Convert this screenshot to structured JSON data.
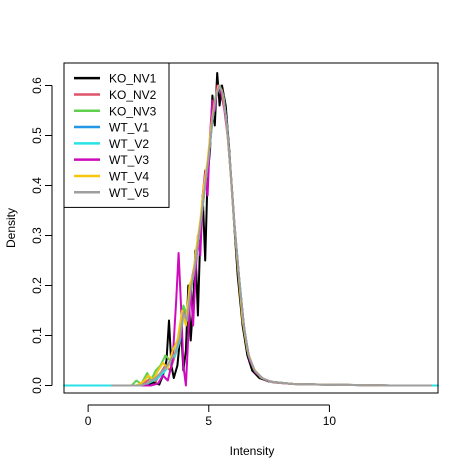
{
  "chart_data": {
    "type": "line",
    "title": "",
    "xlabel": "Intensity",
    "ylabel": "Density",
    "xlim": [
      -1.0,
      14.5
    ],
    "ylim": [
      -0.015,
      0.645
    ],
    "x_ticks": [
      0,
      5,
      10
    ],
    "y_ticks": [
      0.0,
      0.1,
      0.2,
      0.3,
      0.4,
      0.5,
      0.6
    ],
    "x_tick_labels": [
      "0",
      "5",
      "10"
    ],
    "y_tick_labels": [
      "0.0",
      "0.1",
      "0.2",
      "0.3",
      "0.4",
      "0.5",
      "0.6"
    ],
    "grid": false,
    "legend_position": "top-left",
    "series": [
      {
        "name": "KO_NV1",
        "color": "#000000",
        "points": [
          [
            1.0,
            0.0
          ],
          [
            2.4,
            0.0
          ],
          [
            2.7,
            0.006
          ],
          [
            2.95,
            0.002
          ],
          [
            3.1,
            0.02
          ],
          [
            3.25,
            0.05
          ],
          [
            3.35,
            0.13
          ],
          [
            3.45,
            0.04
          ],
          [
            3.55,
            0.015
          ],
          [
            3.7,
            0.04
          ],
          [
            3.85,
            0.115
          ],
          [
            3.95,
            0.03
          ],
          [
            4.05,
            0.07
          ],
          [
            4.15,
            0.2
          ],
          [
            4.25,
            0.09
          ],
          [
            4.35,
            0.16
          ],
          [
            4.45,
            0.27
          ],
          [
            4.55,
            0.14
          ],
          [
            4.65,
            0.3
          ],
          [
            4.75,
            0.38
          ],
          [
            4.85,
            0.25
          ],
          [
            4.95,
            0.42
          ],
          [
            5.05,
            0.47
          ],
          [
            5.15,
            0.58
          ],
          [
            5.25,
            0.52
          ],
          [
            5.35,
            0.625
          ],
          [
            5.45,
            0.56
          ],
          [
            5.55,
            0.6
          ],
          [
            5.7,
            0.56
          ],
          [
            5.85,
            0.47
          ],
          [
            6.0,
            0.36
          ],
          [
            6.2,
            0.22
          ],
          [
            6.4,
            0.12
          ],
          [
            6.6,
            0.06
          ],
          [
            6.8,
            0.03
          ],
          [
            7.1,
            0.015
          ],
          [
            7.5,
            0.008
          ],
          [
            8.5,
            0.003
          ],
          [
            9.5,
            0.002
          ],
          [
            11.0,
            0.001
          ],
          [
            12.5,
            0.0
          ],
          [
            13.9,
            0.0
          ]
        ]
      },
      {
        "name": "KO_NV2",
        "color": "#DF536B",
        "points": [
          [
            1.0,
            0.0
          ],
          [
            2.0,
            0.0
          ],
          [
            2.3,
            0.004
          ],
          [
            2.6,
            0.015
          ],
          [
            2.8,
            0.008
          ],
          [
            3.0,
            0.025
          ],
          [
            3.2,
            0.04
          ],
          [
            3.4,
            0.03
          ],
          [
            3.6,
            0.06
          ],
          [
            3.8,
            0.09
          ],
          [
            3.95,
            0.15
          ],
          [
            4.1,
            0.13
          ],
          [
            4.25,
            0.2
          ],
          [
            4.4,
            0.24
          ],
          [
            4.55,
            0.28
          ],
          [
            4.7,
            0.34
          ],
          [
            4.85,
            0.4
          ],
          [
            5.0,
            0.46
          ],
          [
            5.15,
            0.53
          ],
          [
            5.3,
            0.58
          ],
          [
            5.45,
            0.6
          ],
          [
            5.6,
            0.58
          ],
          [
            5.75,
            0.52
          ],
          [
            5.9,
            0.43
          ],
          [
            6.05,
            0.33
          ],
          [
            6.25,
            0.22
          ],
          [
            6.45,
            0.12
          ],
          [
            6.65,
            0.06
          ],
          [
            6.9,
            0.03
          ],
          [
            7.2,
            0.015
          ],
          [
            7.6,
            0.007
          ],
          [
            8.5,
            0.003
          ],
          [
            9.5,
            0.002
          ],
          [
            11.0,
            0.001
          ],
          [
            12.5,
            0.0
          ],
          [
            14.2,
            0.0
          ]
        ]
      },
      {
        "name": "KO_NV3",
        "color": "#61D04F",
        "points": [
          [
            1.0,
            0.0
          ],
          [
            1.8,
            0.0
          ],
          [
            2.0,
            0.01
          ],
          [
            2.2,
            0.003
          ],
          [
            2.45,
            0.025
          ],
          [
            2.6,
            0.01
          ],
          [
            2.8,
            0.03
          ],
          [
            3.0,
            0.04
          ],
          [
            3.2,
            0.06
          ],
          [
            3.4,
            0.05
          ],
          [
            3.6,
            0.08
          ],
          [
            3.8,
            0.1
          ],
          [
            3.95,
            0.16
          ],
          [
            4.1,
            0.14
          ],
          [
            4.25,
            0.2
          ],
          [
            4.4,
            0.23
          ],
          [
            4.55,
            0.28
          ],
          [
            4.7,
            0.34
          ],
          [
            4.85,
            0.4
          ],
          [
            5.0,
            0.46
          ],
          [
            5.15,
            0.53
          ],
          [
            5.3,
            0.58
          ],
          [
            5.45,
            0.6
          ],
          [
            5.6,
            0.58
          ],
          [
            5.75,
            0.52
          ],
          [
            5.9,
            0.43
          ],
          [
            6.05,
            0.33
          ],
          [
            6.25,
            0.22
          ],
          [
            6.45,
            0.12
          ],
          [
            6.65,
            0.06
          ],
          [
            6.9,
            0.03
          ],
          [
            7.2,
            0.015
          ],
          [
            7.6,
            0.007
          ],
          [
            8.5,
            0.003
          ],
          [
            9.5,
            0.002
          ],
          [
            11.0,
            0.001
          ],
          [
            12.5,
            0.0
          ],
          [
            14.2,
            0.0
          ]
        ]
      },
      {
        "name": "WT_V1",
        "color": "#2297E6",
        "points": [
          [
            1.0,
            0.0
          ],
          [
            2.2,
            0.0
          ],
          [
            2.5,
            0.005
          ],
          [
            2.8,
            0.012
          ],
          [
            3.0,
            0.02
          ],
          [
            3.2,
            0.03
          ],
          [
            3.4,
            0.045
          ],
          [
            3.6,
            0.06
          ],
          [
            3.8,
            0.09
          ],
          [
            3.95,
            0.14
          ],
          [
            4.1,
            0.13
          ],
          [
            4.25,
            0.19
          ],
          [
            4.4,
            0.23
          ],
          [
            4.55,
            0.28
          ],
          [
            4.7,
            0.34
          ],
          [
            4.85,
            0.4
          ],
          [
            5.0,
            0.46
          ],
          [
            5.15,
            0.53
          ],
          [
            5.3,
            0.58
          ],
          [
            5.45,
            0.6
          ],
          [
            5.6,
            0.58
          ],
          [
            5.75,
            0.52
          ],
          [
            5.9,
            0.43
          ],
          [
            6.05,
            0.33
          ],
          [
            6.25,
            0.22
          ],
          [
            6.45,
            0.12
          ],
          [
            6.65,
            0.06
          ],
          [
            6.9,
            0.03
          ],
          [
            7.2,
            0.015
          ],
          [
            7.6,
            0.007
          ],
          [
            8.5,
            0.003
          ],
          [
            9.5,
            0.002
          ],
          [
            11.0,
            0.001
          ],
          [
            12.5,
            0.0
          ],
          [
            14.2,
            0.0
          ]
        ]
      },
      {
        "name": "WT_V2",
        "color": "#28E2E5",
        "points": [
          [
            -1.0,
            0.0
          ],
          [
            1.0,
            0.0
          ],
          [
            2.2,
            0.0
          ],
          [
            2.5,
            0.005
          ],
          [
            2.8,
            0.012
          ],
          [
            3.0,
            0.02
          ],
          [
            3.2,
            0.03
          ],
          [
            3.4,
            0.045
          ],
          [
            3.6,
            0.06
          ],
          [
            3.8,
            0.09
          ],
          [
            3.95,
            0.14
          ],
          [
            4.1,
            0.13
          ],
          [
            4.25,
            0.19
          ],
          [
            4.4,
            0.23
          ],
          [
            4.55,
            0.28
          ],
          [
            4.7,
            0.34
          ],
          [
            4.85,
            0.4
          ],
          [
            5.0,
            0.46
          ],
          [
            5.15,
            0.53
          ],
          [
            5.3,
            0.58
          ],
          [
            5.45,
            0.6
          ],
          [
            5.6,
            0.58
          ],
          [
            5.75,
            0.52
          ],
          [
            5.9,
            0.43
          ],
          [
            6.05,
            0.33
          ],
          [
            6.25,
            0.22
          ],
          [
            6.45,
            0.12
          ],
          [
            6.65,
            0.06
          ],
          [
            6.9,
            0.03
          ],
          [
            7.2,
            0.015
          ],
          [
            7.6,
            0.007
          ],
          [
            8.5,
            0.003
          ],
          [
            9.5,
            0.002
          ],
          [
            11.0,
            0.001
          ],
          [
            12.5,
            0.0
          ],
          [
            14.5,
            0.0
          ]
        ]
      },
      {
        "name": "WT_V3",
        "color": "#CD0BBC",
        "points": [
          [
            1.0,
            0.0
          ],
          [
            2.6,
            0.0
          ],
          [
            2.9,
            0.004
          ],
          [
            3.1,
            0.02
          ],
          [
            3.3,
            0.01
          ],
          [
            3.5,
            0.05
          ],
          [
            3.65,
            0.17
          ],
          [
            3.75,
            0.265
          ],
          [
            3.85,
            0.16
          ],
          [
            3.95,
            0.04
          ],
          [
            4.05,
            0.0
          ],
          [
            4.15,
            0.1
          ],
          [
            4.25,
            0.2
          ],
          [
            4.35,
            0.12
          ],
          [
            4.45,
            0.22
          ],
          [
            4.55,
            0.3
          ],
          [
            4.65,
            0.26
          ],
          [
            4.75,
            0.38
          ],
          [
            4.85,
            0.43
          ],
          [
            4.95,
            0.38
          ],
          [
            5.05,
            0.5
          ],
          [
            5.15,
            0.57
          ],
          [
            5.25,
            0.55
          ],
          [
            5.35,
            0.6
          ],
          [
            5.5,
            0.59
          ],
          [
            5.65,
            0.55
          ],
          [
            5.8,
            0.49
          ],
          [
            5.95,
            0.4
          ],
          [
            6.1,
            0.3
          ],
          [
            6.3,
            0.19
          ],
          [
            6.5,
            0.1
          ],
          [
            6.7,
            0.05
          ],
          [
            6.95,
            0.025
          ],
          [
            7.3,
            0.012
          ],
          [
            7.7,
            0.006
          ],
          [
            8.5,
            0.003
          ],
          [
            9.5,
            0.002
          ],
          [
            11.0,
            0.001
          ],
          [
            12.5,
            0.0
          ],
          [
            14.2,
            0.0
          ]
        ]
      },
      {
        "name": "WT_V4",
        "color": "#F5C710",
        "points": [
          [
            1.0,
            0.0
          ],
          [
            2.0,
            0.0
          ],
          [
            2.3,
            0.008
          ],
          [
            2.5,
            0.02
          ],
          [
            2.7,
            0.012
          ],
          [
            2.9,
            0.03
          ],
          [
            3.1,
            0.045
          ],
          [
            3.3,
            0.035
          ],
          [
            3.5,
            0.07
          ],
          [
            3.7,
            0.09
          ],
          [
            3.9,
            0.15
          ],
          [
            4.05,
            0.12
          ],
          [
            4.2,
            0.2
          ],
          [
            4.35,
            0.22
          ],
          [
            4.5,
            0.28
          ],
          [
            4.65,
            0.33
          ],
          [
            4.8,
            0.4
          ],
          [
            4.95,
            0.45
          ],
          [
            5.1,
            0.52
          ],
          [
            5.25,
            0.57
          ],
          [
            5.4,
            0.6
          ],
          [
            5.55,
            0.59
          ],
          [
            5.7,
            0.54
          ],
          [
            5.85,
            0.46
          ],
          [
            6.0,
            0.36
          ],
          [
            6.2,
            0.24
          ],
          [
            6.4,
            0.13
          ],
          [
            6.6,
            0.07
          ],
          [
            6.85,
            0.035
          ],
          [
            7.15,
            0.016
          ],
          [
            7.6,
            0.007
          ],
          [
            8.5,
            0.003
          ],
          [
            9.5,
            0.002
          ],
          [
            11.0,
            0.001
          ],
          [
            12.5,
            0.0
          ],
          [
            14.2,
            0.0
          ]
        ]
      },
      {
        "name": "WT_V5",
        "color": "#9E9E9E",
        "points": [
          [
            1.0,
            0.0
          ],
          [
            2.2,
            0.0
          ],
          [
            2.5,
            0.006
          ],
          [
            2.8,
            0.015
          ],
          [
            3.0,
            0.025
          ],
          [
            3.2,
            0.035
          ],
          [
            3.4,
            0.05
          ],
          [
            3.6,
            0.065
          ],
          [
            3.8,
            0.095
          ],
          [
            3.95,
            0.145
          ],
          [
            4.1,
            0.13
          ],
          [
            4.25,
            0.19
          ],
          [
            4.4,
            0.23
          ],
          [
            4.55,
            0.28
          ],
          [
            4.7,
            0.34
          ],
          [
            4.85,
            0.4
          ],
          [
            5.0,
            0.46
          ],
          [
            5.15,
            0.53
          ],
          [
            5.3,
            0.58
          ],
          [
            5.45,
            0.6
          ],
          [
            5.6,
            0.58
          ],
          [
            5.75,
            0.52
          ],
          [
            5.9,
            0.43
          ],
          [
            6.05,
            0.33
          ],
          [
            6.25,
            0.22
          ],
          [
            6.45,
            0.12
          ],
          [
            6.65,
            0.06
          ],
          [
            6.9,
            0.03
          ],
          [
            7.2,
            0.015
          ],
          [
            7.6,
            0.007
          ],
          [
            8.5,
            0.003
          ],
          [
            9.5,
            0.002
          ],
          [
            11.0,
            0.001
          ],
          [
            12.5,
            0.0
          ],
          [
            14.2,
            0.0
          ]
        ]
      }
    ]
  }
}
